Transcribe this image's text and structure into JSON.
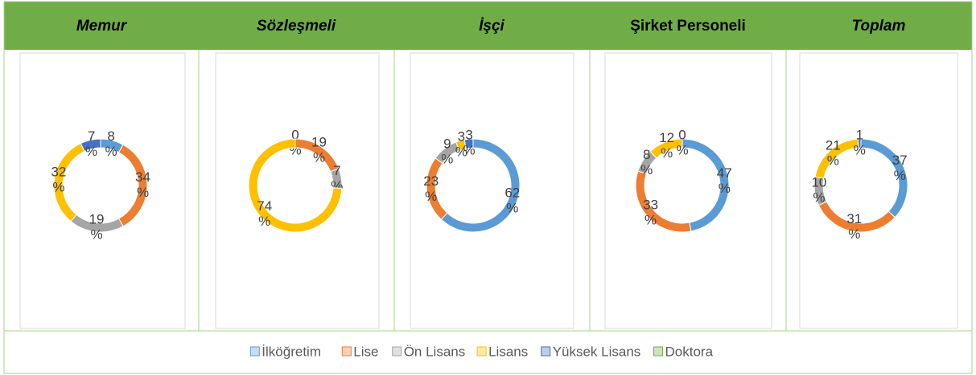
{
  "chart_data": [
    {
      "type": "donut",
      "title": "Memur",
      "categories": [
        "İlköğretim",
        "Lise",
        "Ön Lisans",
        "Lisans",
        "Yüksek Lisans",
        "Doktora"
      ],
      "colors": [
        "#5b9bd5",
        "#ed7d31",
        "#a5a5a5",
        "#ffc000",
        "#4472c4",
        "#70ad47"
      ],
      "values": [
        8,
        34,
        19,
        32,
        7,
        null
      ],
      "value_labels": [
        "8 %",
        "34 %",
        "19 %",
        "32 %",
        "7 %",
        null
      ]
    },
    {
      "type": "donut",
      "title": "Sözleşmeli",
      "categories": [
        "İlköğretim",
        "Lise",
        "Ön Lisans",
        "Lisans",
        "Yüksek Lisans",
        "Doktora"
      ],
      "colors": [
        "#5b9bd5",
        "#ed7d31",
        "#a5a5a5",
        "#ffc000",
        "#4472c4",
        "#70ad47"
      ],
      "values": [
        0,
        19,
        7,
        74,
        null,
        null
      ],
      "value_labels": [
        "0 %",
        "19 %",
        "7 %",
        "74 %",
        null,
        null
      ]
    },
    {
      "type": "donut",
      "title": "İşçi",
      "categories": [
        "İlköğretim",
        "Lise",
        "Ön Lisans",
        "Lisans",
        "Yüksek Lisans",
        "Doktora"
      ],
      "colors": [
        "#5b9bd5",
        "#ed7d31",
        "#a5a5a5",
        "#ffc000",
        "#4472c4",
        "#70ad47"
      ],
      "values": [
        62,
        23,
        9,
        3,
        3,
        null
      ],
      "value_labels": [
        "62 %",
        "23 %",
        "9 %",
        "3 %",
        "3 %",
        null
      ]
    },
    {
      "type": "donut",
      "title": "Şirket Personeli",
      "categories": [
        "İlköğretim",
        "Lise",
        "Ön Lisans",
        "Lisans",
        "Yüksek Lisans",
        "Doktora"
      ],
      "colors": [
        "#5b9bd5",
        "#ed7d31",
        "#a5a5a5",
        "#ffc000",
        "#4472c4",
        "#70ad47"
      ],
      "values": [
        47,
        33,
        8,
        12,
        0,
        null
      ],
      "value_labels": [
        "47 %",
        "33 %",
        "8 %",
        "12 %",
        "0 %",
        null
      ]
    },
    {
      "type": "donut",
      "title": "Toplam",
      "categories": [
        "İlköğretim",
        "Lise",
        "Ön Lisans",
        "Lisans",
        "Yüksek Lisans",
        "Doktora"
      ],
      "colors": [
        "#5b9bd5",
        "#ed7d31",
        "#a5a5a5",
        "#ffc000",
        "#4472c4",
        "#70ad47"
      ],
      "values": [
        37,
        31,
        10,
        21,
        1,
        null
      ],
      "value_labels": [
        "37 %",
        "31 %",
        "10 %",
        "21 %",
        "1 %",
        null
      ]
    }
  ]
}
